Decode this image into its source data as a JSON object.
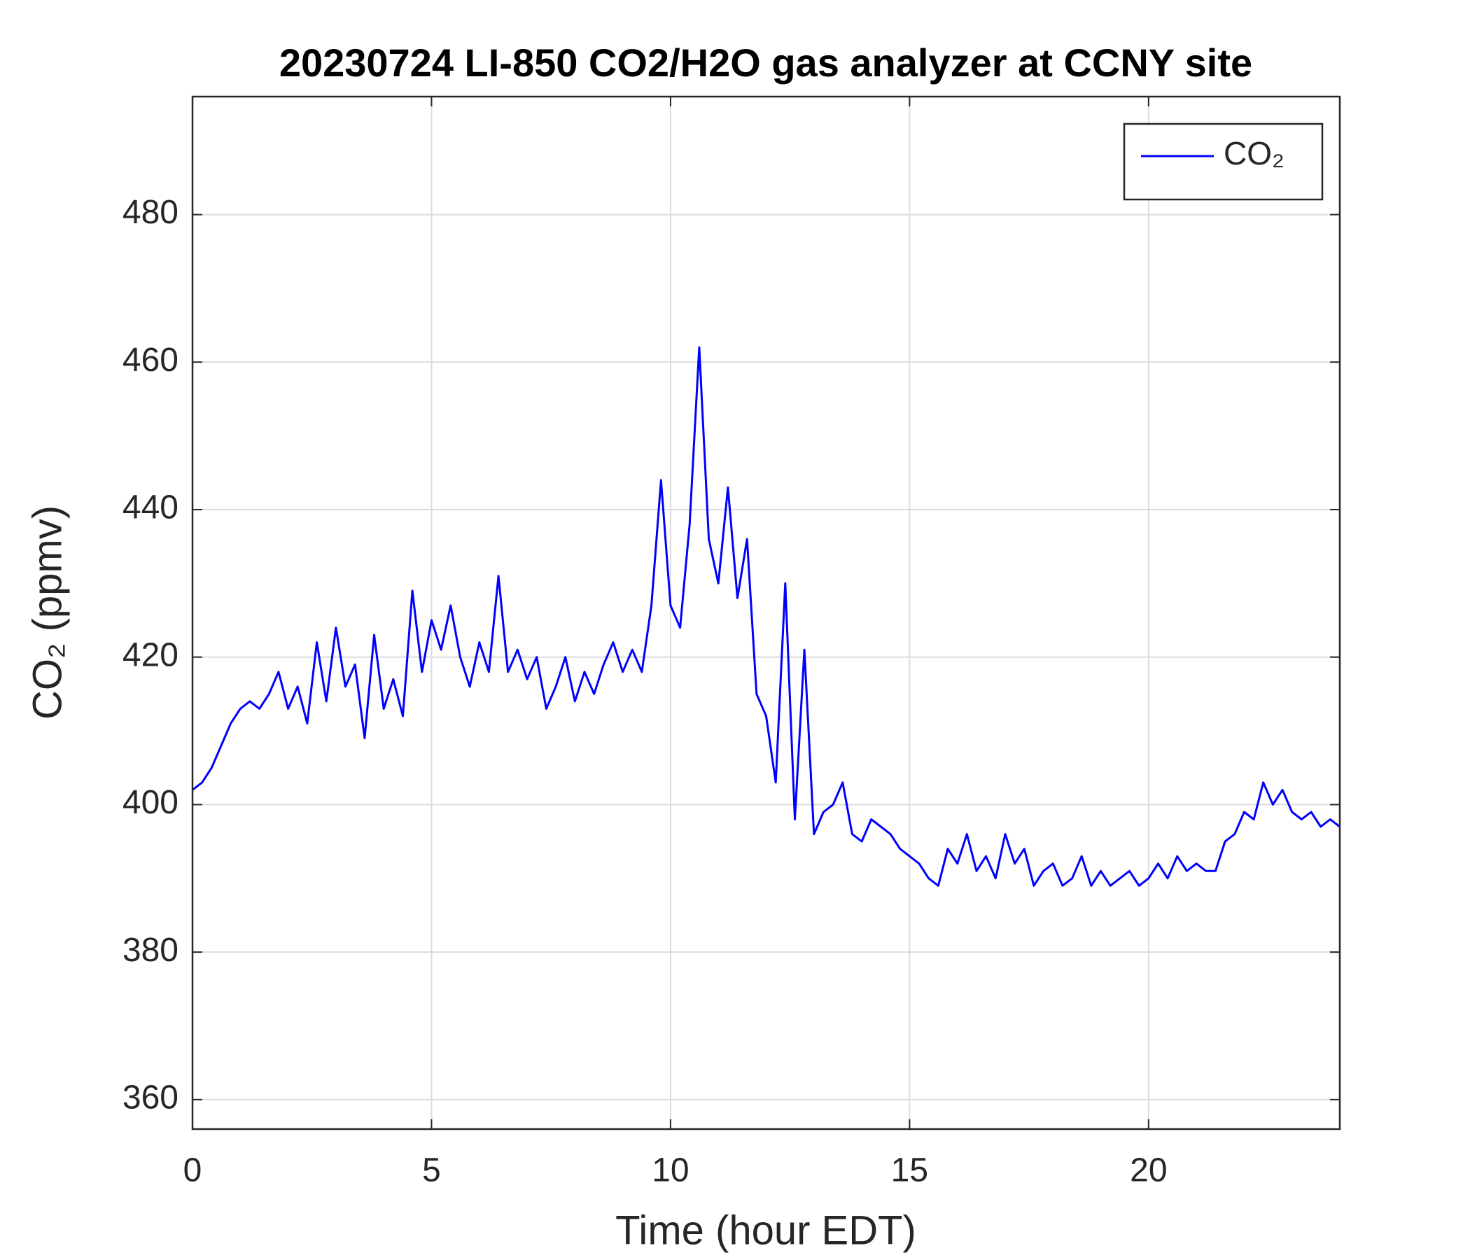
{
  "chart_data": {
    "type": "line",
    "title": "20230724 LI-850 CO2/H2O gas analyzer at CCNY site",
    "xlabel": "Time (hour EDT)",
    "ylabel": "CO₂ (ppmv)",
    "x": [
      0,
      0.2,
      0.4,
      0.6,
      0.8,
      1,
      1.2,
      1.4,
      1.6,
      1.8,
      2,
      2.2,
      2.4,
      2.6,
      2.8,
      3,
      3.2,
      3.4,
      3.6,
      3.8,
      4,
      4.2,
      4.4,
      4.6,
      4.8,
      5,
      5.2,
      5.4,
      5.6,
      5.8,
      6,
      6.2,
      6.4,
      6.6,
      6.8,
      7,
      7.2,
      7.4,
      7.6,
      7.8,
      8,
      8.2,
      8.4,
      8.6,
      8.8,
      9,
      9.2,
      9.4,
      9.6,
      9.8,
      10,
      10.2,
      10.4,
      10.6,
      10.8,
      11,
      11.2,
      11.4,
      11.6,
      11.8,
      12,
      12.2,
      12.4,
      12.6,
      12.8,
      13,
      13.2,
      13.4,
      13.6,
      13.8,
      14,
      14.2,
      14.4,
      14.6,
      14.8,
      15,
      15.2,
      15.4,
      15.6,
      15.8,
      16,
      16.2,
      16.4,
      16.6,
      16.8,
      17,
      17.2,
      17.4,
      17.6,
      17.8,
      18,
      18.2,
      18.4,
      18.6,
      18.8,
      19,
      19.2,
      19.4,
      19.6,
      19.8,
      20,
      20.2,
      20.4,
      20.6,
      20.8,
      21,
      21.2,
      21.4,
      21.6,
      21.8,
      22,
      22.2,
      22.4,
      22.6,
      22.8,
      23,
      23.2,
      23.4,
      23.6,
      23.8,
      24
    ],
    "series": [
      {
        "name": "CO₂",
        "color": "#0000ff",
        "values": [
          402,
          403,
          405,
          408,
          411,
          413,
          414,
          413,
          415,
          418,
          413,
          416,
          411,
          422,
          414,
          424,
          416,
          419,
          409,
          423,
          413,
          417,
          412,
          429,
          418,
          425,
          421,
          427,
          420,
          416,
          422,
          418,
          431,
          418,
          421,
          417,
          420,
          413,
          416,
          420,
          414,
          418,
          415,
          419,
          422,
          418,
          421,
          418,
          427,
          444,
          427,
          424,
          438,
          462,
          436,
          430,
          443,
          428,
          436,
          415,
          412,
          403,
          430,
          398,
          421,
          396,
          399,
          400,
          403,
          396,
          395,
          398,
          397,
          396,
          394,
          393,
          392,
          390,
          389,
          394,
          392,
          396,
          391,
          393,
          390,
          396,
          392,
          394,
          389,
          391,
          392,
          389,
          390,
          393,
          389,
          391,
          389,
          390,
          391,
          389,
          390,
          392,
          390,
          393,
          391,
          392,
          391,
          391,
          395,
          396,
          399,
          398,
          403,
          400,
          402,
          399,
          398,
          399,
          397,
          398,
          397
        ]
      }
    ],
    "xlim": [
      0,
      24
    ],
    "ylim": [
      356,
      496
    ],
    "xticks": [
      0,
      5,
      10,
      15,
      20
    ],
    "yticks": [
      360,
      380,
      400,
      420,
      440,
      460,
      480
    ],
    "grid": true,
    "legend": "upper right"
  }
}
